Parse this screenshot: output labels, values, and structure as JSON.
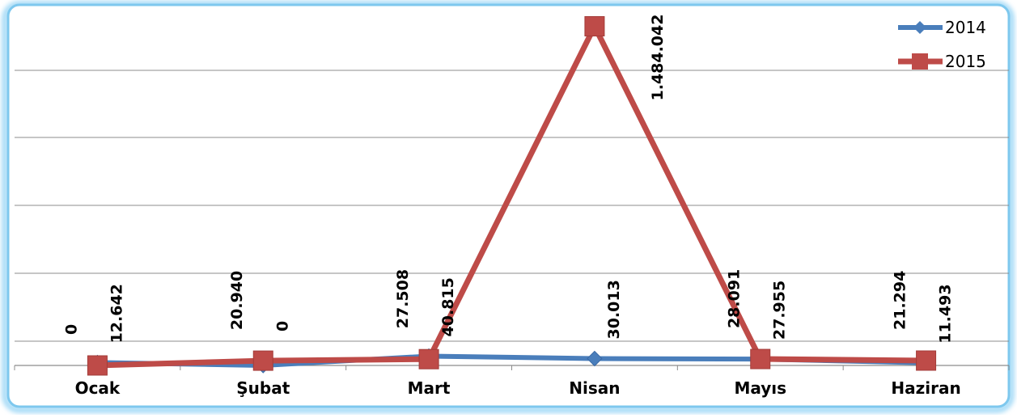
{
  "chart_data": {
    "type": "line",
    "categories": [
      "Ocak",
      "Şubat",
      "Mart",
      "Nisan",
      "Mayıs",
      "Haziran"
    ],
    "series": [
      {
        "name": "2014",
        "values": [
          12642,
          0,
          40815,
          30013,
          27955,
          11493
        ],
        "labels": [
          "12.642",
          "0",
          "40.815",
          "30.013",
          "27.955",
          "11.493"
        ],
        "color": "#4a7ebb"
      },
      {
        "name": "2015",
        "values": [
          0,
          20940,
          27508,
          1484042,
          28091,
          21294
        ],
        "labels": [
          "0",
          "20.940",
          "27.508",
          "1.484.042",
          "28.091",
          "21.294"
        ],
        "color": "#be4b48"
      }
    ],
    "ylim": [
      0,
      1500000
    ],
    "grid": true,
    "legend": "top-right",
    "frame_border_color": "#7ec8ee"
  }
}
